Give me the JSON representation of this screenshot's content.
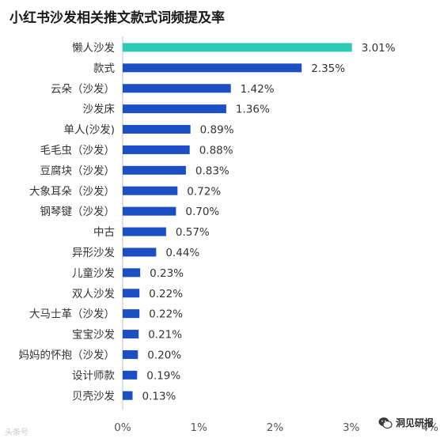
{
  "chart_data": {
    "type": "bar",
    "orientation": "horizontal",
    "title": "小红书沙发相关推文款式词频提及率",
    "categories": [
      "懒人沙发",
      "款式",
      "云朵（沙发）",
      "沙发床",
      "单人(沙发)",
      "毛毛虫（沙发）",
      "豆腐块（沙发）",
      "大象耳朵（沙发）",
      "钢琴键（沙发）",
      "中古",
      "异形沙发",
      "儿童沙发",
      "双人沙发",
      "大马士革（沙发）",
      "宝宝沙发",
      "妈妈的怀抱（沙发）",
      "设计师款",
      "贝壳沙发"
    ],
    "values": [
      3.01,
      2.35,
      1.42,
      1.36,
      0.89,
      0.88,
      0.83,
      0.72,
      0.7,
      0.57,
      0.44,
      0.23,
      0.22,
      0.22,
      0.21,
      0.2,
      0.19,
      0.13
    ],
    "value_labels": [
      "3.01%",
      "2.35%",
      "1.42%",
      "1.36%",
      "0.89%",
      "0.88%",
      "0.83%",
      "0.72%",
      "0.70%",
      "0.57%",
      "0.44%",
      "0.23%",
      "0.22%",
      "0.22%",
      "0.21%",
      "0.20%",
      "0.19%",
      "0.13%"
    ],
    "xlim": [
      0,
      4
    ],
    "xticks": [
      0,
      1,
      2,
      3,
      4
    ],
    "xtick_labels": [
      "0%",
      "1%",
      "2%",
      "3%",
      "4%"
    ],
    "colors": {
      "highlight": "#2dcab5",
      "bar": "#1c4fc4",
      "axis": "#bfbfbf",
      "text": "#333333"
    },
    "highlight_index": 0,
    "grid": false,
    "legend": "none"
  },
  "watermark": {
    "left_text": "头条号",
    "right_text": "洞见研报"
  },
  "icons": {
    "wechat": "wechat-icon"
  }
}
